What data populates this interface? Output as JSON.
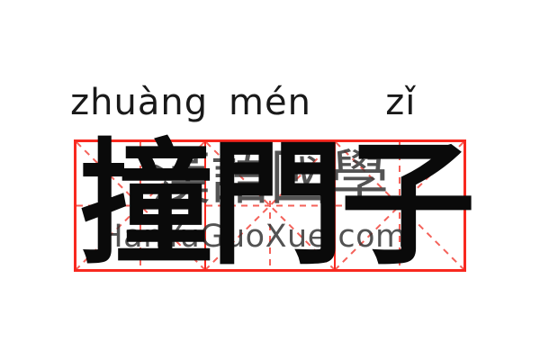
{
  "word": {
    "pinyin_line": "zhuàng mén zǐ",
    "characters": [
      {
        "char": "撞",
        "pinyin": "zhuàng"
      },
      {
        "char": "門",
        "pinyin": "mén"
      },
      {
        "char": "子",
        "pinyin": "zǐ"
      }
    ]
  },
  "grid": {
    "style": "mi-zi-ge practice grid",
    "cells": 3
  },
  "watermark": {
    "cjk": "漢語國學",
    "site": "HanYuGuoXue.com"
  },
  "colors": {
    "grid_solid": "#f8281f",
    "grid_dashed": "#f4625a",
    "ink": "#0a0a0a",
    "pinyin": "#191919",
    "watermark": "#333333",
    "background": "#ffffff"
  }
}
